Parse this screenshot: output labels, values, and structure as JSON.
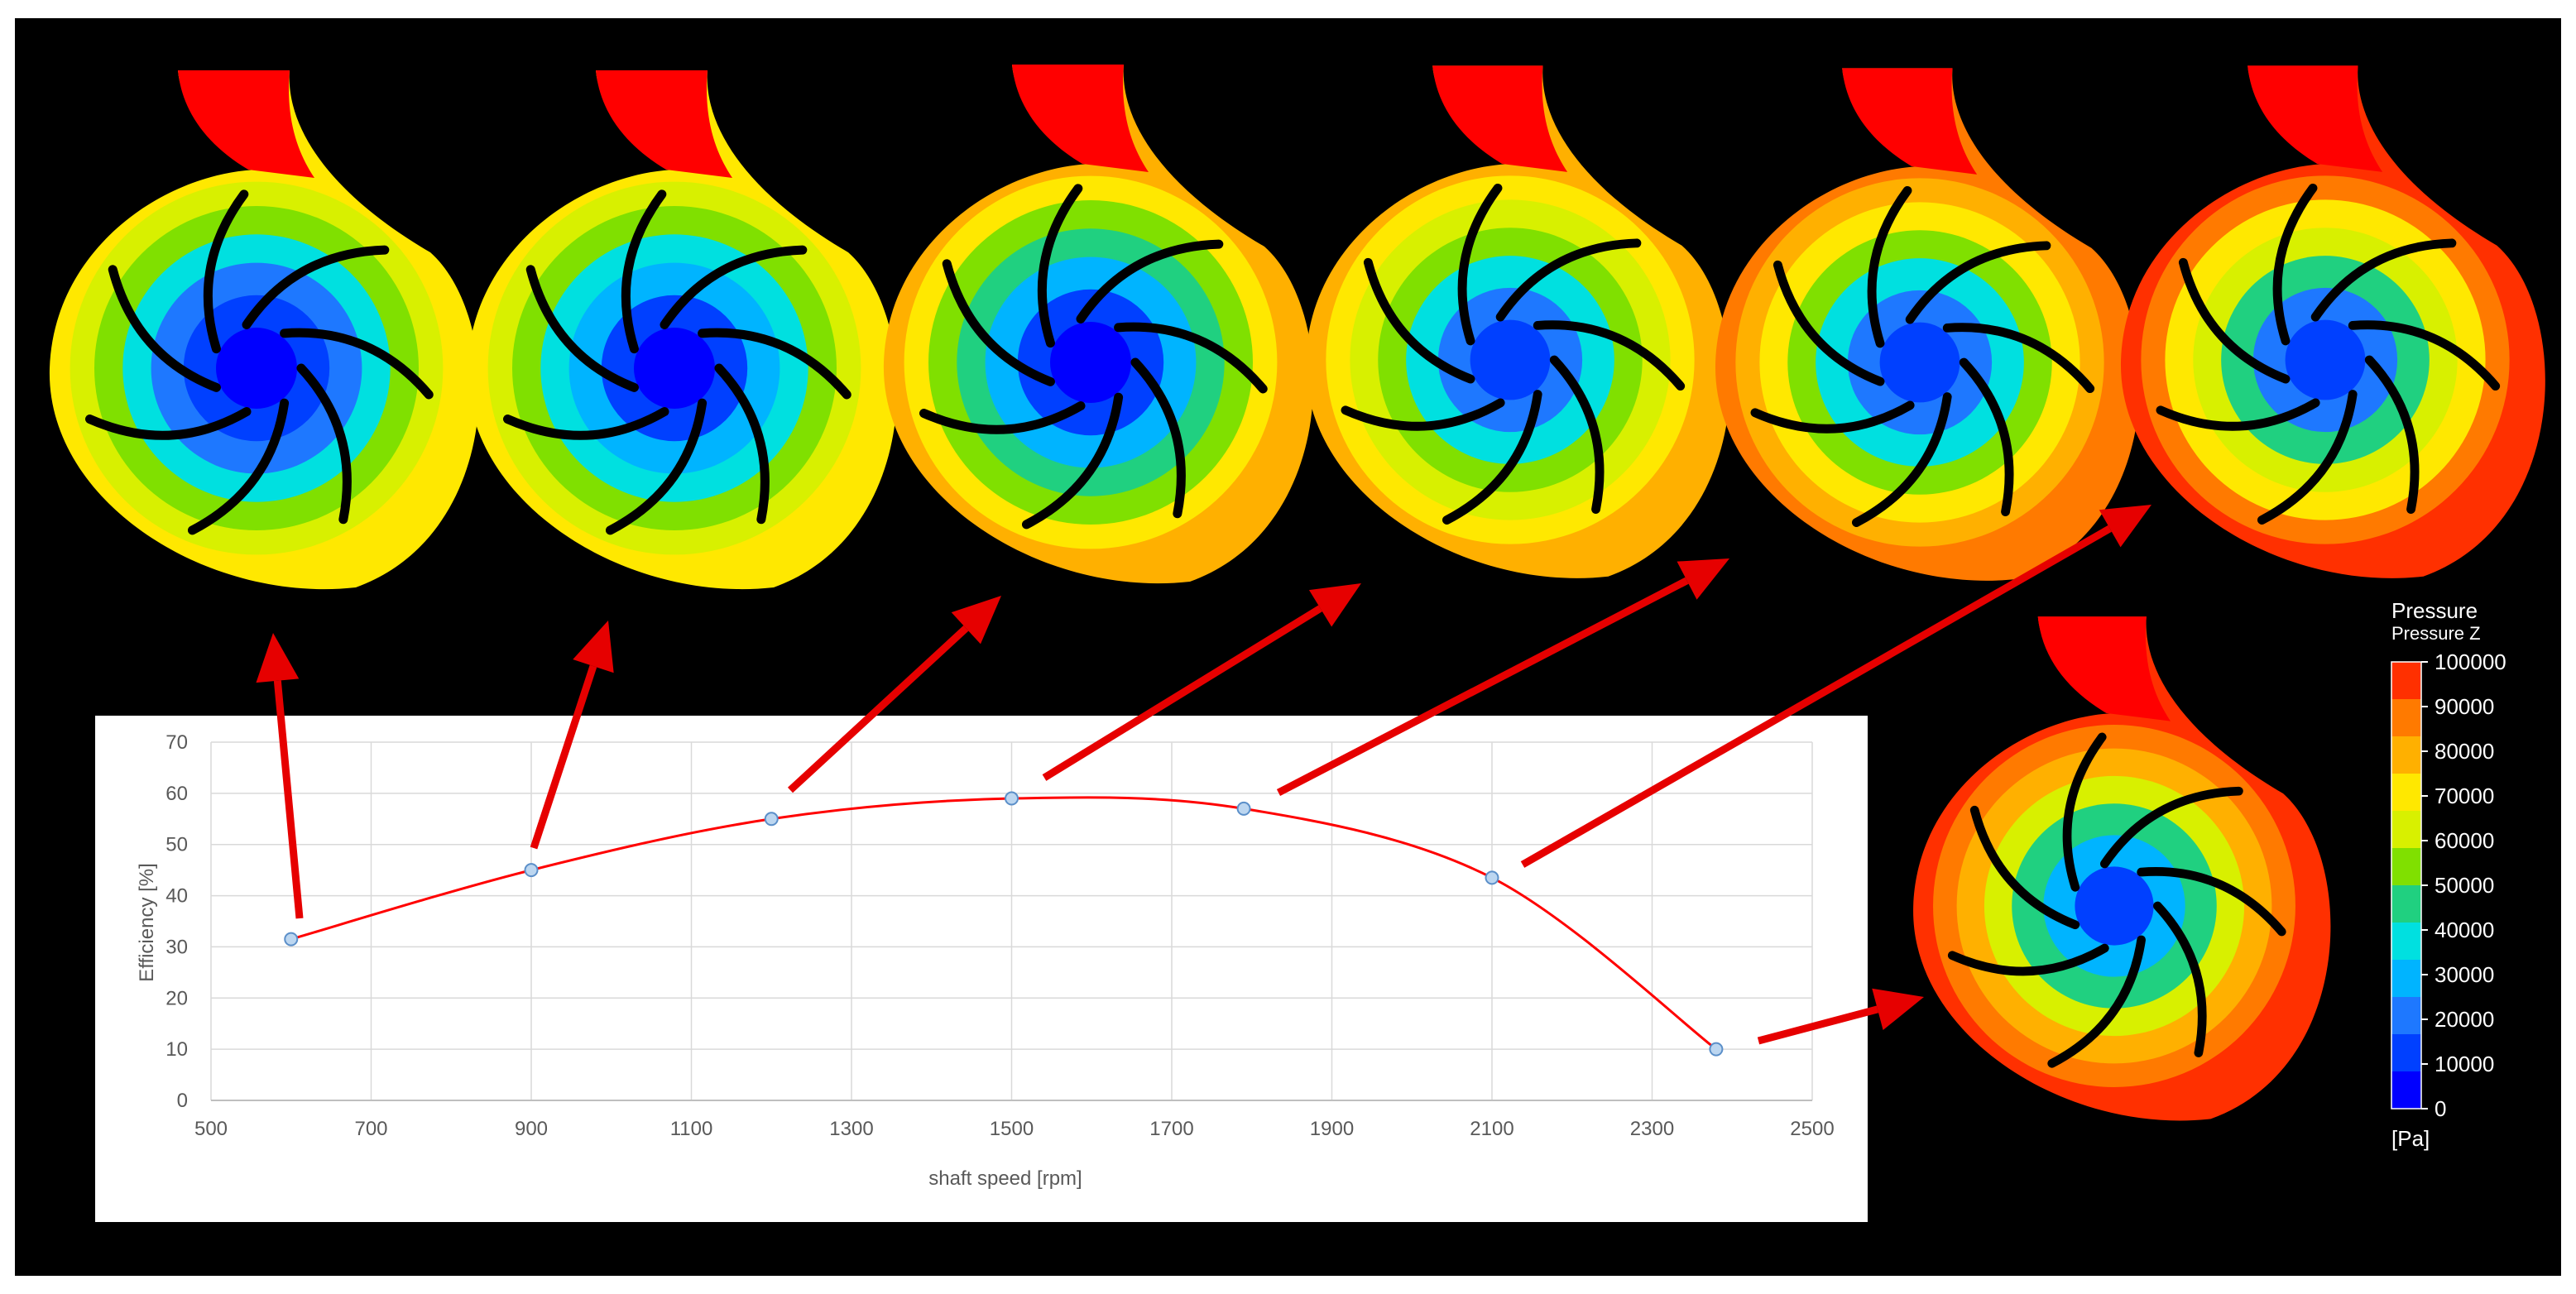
{
  "colors": {
    "background": "#000000",
    "curve": "#ff0000",
    "arrow": "#e60000",
    "marker_fill": "#bcd6f0",
    "marker_stroke": "#5b8fc9",
    "grid": "#d9d9d9"
  },
  "chart_data": {
    "type": "scatter",
    "xlabel": "shaft speed [rpm]",
    "ylabel": "Efficiency [%]",
    "xlim": [
      500,
      2500
    ],
    "ylim": [
      0,
      70
    ],
    "x_ticks": [
      500,
      700,
      900,
      1100,
      1300,
      1500,
      1700,
      1900,
      2100,
      2300,
      2500
    ],
    "y_ticks": [
      0,
      10,
      20,
      30,
      40,
      50,
      60,
      70
    ],
    "grid": true,
    "series": [
      {
        "x": [
          600,
          900,
          1200,
          1500,
          1790,
          2100,
          2380
        ],
        "y": [
          31.5,
          45,
          55,
          59,
          57,
          43.5,
          10
        ]
      }
    ]
  },
  "legend": {
    "title": "Pressure",
    "subtitle": "Pressure Z",
    "unit": "[Pa]",
    "labels": [
      "100000",
      "90000",
      "80000",
      "70000",
      "60000",
      "50000",
      "40000",
      "30000",
      "20000",
      "10000",
      "0"
    ],
    "colors": [
      "#ff3000",
      "#ff7a00",
      "#ffb000",
      "#ffe800",
      "#d8f000",
      "#80e000",
      "#20d080",
      "#00e0e0",
      "#00b4ff",
      "#1e78ff",
      "#0040ff",
      "#0000ff"
    ]
  },
  "pumps": [
    {
      "level": 0.0
    },
    {
      "level": 0.05
    },
    {
      "level": 0.22
    },
    {
      "level": 0.45
    },
    {
      "level": 0.62
    },
    {
      "level": 0.82
    },
    {
      "level": 0.9
    }
  ]
}
